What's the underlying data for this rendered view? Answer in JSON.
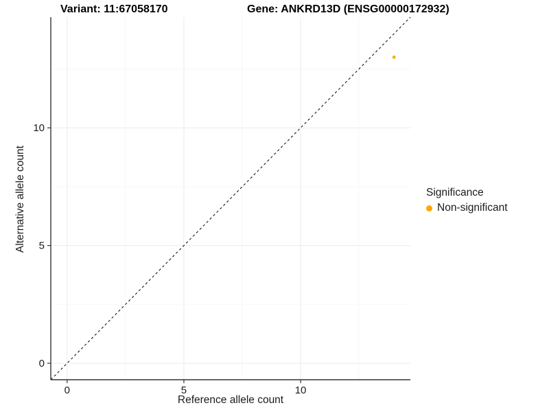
{
  "chart_data": {
    "type": "scatter",
    "titles": {
      "left": "Variant: 11:67058170",
      "right": "Gene: ANKRD13D (ENSG00000172932)"
    },
    "xlabel": "Reference allele count",
    "ylabel": "Alternative allele count",
    "x_ticks": [
      0,
      5,
      10
    ],
    "y_ticks": [
      0,
      5,
      10
    ],
    "minor_ticks": [
      2.5,
      7.5,
      12.5
    ],
    "xlim": [
      -0.7,
      14.7
    ],
    "ylim": [
      -0.7,
      14.7
    ],
    "grid": true,
    "legend_position": "right",
    "reference_line": {
      "style": "dashed",
      "slope": 1,
      "intercept": 0
    },
    "series": [
      {
        "name": "Non-significant",
        "color": "#FFA500",
        "points": [
          {
            "x": 14,
            "y": 13
          }
        ]
      }
    ],
    "legend": {
      "title": "Significance",
      "items": [
        {
          "label": "Non-significant",
          "color": "#FFA500"
        }
      ]
    },
    "colors": {
      "point": "#FFA500",
      "grid_major": "#ebebeb",
      "grid_minor": "#f5f5f5",
      "axis_line": "#333333",
      "text": "#1a1a1a"
    }
  }
}
